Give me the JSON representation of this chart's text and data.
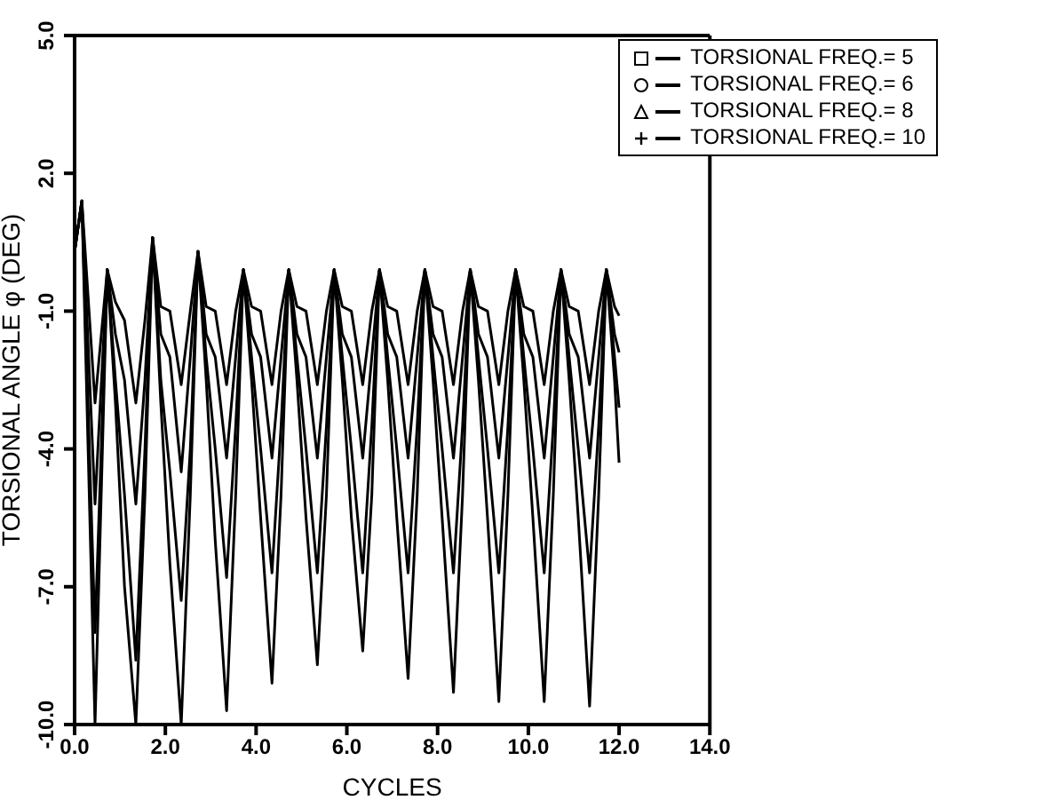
{
  "chart_data": {
    "type": "line",
    "xlabel": "CYCLES",
    "ylabel": "TORSIONAL ANGLE φ (DEG)",
    "x": [
      0,
      0.16,
      0.45,
      0.72,
      0.9,
      1.1,
      1.35,
      1.55,
      1.72,
      1.9,
      2.1,
      2.35,
      2.55,
      2.72,
      2.9,
      3.1,
      3.35,
      3.55,
      3.72,
      3.9,
      4.1,
      4.35,
      4.55,
      4.72,
      4.9,
      5.1,
      5.35,
      5.55,
      5.72,
      5.9,
      6.1,
      6.35,
      6.55,
      6.72,
      6.9,
      7.1,
      7.35,
      7.55,
      7.72,
      7.9,
      8.1,
      8.35,
      8.55,
      8.72,
      8.9,
      9.1,
      9.35,
      9.55,
      9.72,
      9.9,
      10.1,
      10.35,
      10.55,
      10.72,
      10.9,
      11.1,
      11.35,
      11.55,
      11.72,
      11.9,
      12.0
    ],
    "series": [
      {
        "name": "TORSIONAL FREQ.= 5",
        "color": "#000000",
        "values": [
          0.3,
          1.4,
          -10,
          -0.1,
          -3,
          -7,
          -10,
          -5,
          0.6,
          -3,
          -6.5,
          -10,
          -5,
          0.3,
          -2.5,
          -6,
          -9.7,
          -5,
          -0.1,
          -2.5,
          -5.5,
          -9.1,
          -5,
          -0.1,
          -2.5,
          -5.5,
          -8.7,
          -5,
          -0.1,
          -2.5,
          -5.5,
          -8.4,
          -5,
          -0.1,
          -2.5,
          -5.5,
          -9,
          -5,
          -0.1,
          -2.5,
          -5.5,
          -9.3,
          -5,
          -0.1,
          -2.5,
          -5.5,
          -9.5,
          -5,
          -0.1,
          -2.5,
          -5.5,
          -9.5,
          -5,
          -0.1,
          -2.5,
          -5.5,
          -9.6,
          -5,
          -0.1,
          -2.5,
          -4.3
        ]
      },
      {
        "name": "TORSIONAL FREQ.= 6",
        "color": "#000000",
        "values": [
          0.3,
          1.4,
          -8,
          -0.1,
          -2.5,
          -5,
          -8.6,
          -4,
          0.6,
          -2.5,
          -4.5,
          -7.3,
          -4,
          0.3,
          -2,
          -4,
          -6.8,
          -3.5,
          -0.1,
          -2,
          -4,
          -6.7,
          -3.5,
          -0.1,
          -2,
          -4,
          -6.7,
          -3.5,
          -0.1,
          -2,
          -4,
          -6.7,
          -3.5,
          -0.1,
          -2,
          -4,
          -6.7,
          -3.5,
          -0.1,
          -2,
          -4,
          -6.7,
          -3.5,
          -0.1,
          -2,
          -4,
          -6.7,
          -3.5,
          -0.1,
          -2,
          -4,
          -6.7,
          -3.5,
          -0.1,
          -2,
          -4,
          -6.7,
          -3.5,
          -0.1,
          -2,
          -3.1
        ]
      },
      {
        "name": "TORSIONAL FREQ.= 8",
        "color": "#000000",
        "values": [
          0.3,
          1.4,
          -5.2,
          -0.1,
          -1.5,
          -2.5,
          -5.2,
          -2.5,
          0.6,
          -1.5,
          -2,
          -4.5,
          -2,
          0.3,
          -1.5,
          -2,
          -4.2,
          -2,
          -0.1,
          -1.5,
          -2,
          -4.2,
          -2,
          -0.1,
          -1.5,
          -2,
          -4.2,
          -2,
          -0.1,
          -1.5,
          -2,
          -4.2,
          -2,
          -0.1,
          -1.5,
          -2,
          -4.2,
          -2,
          -0.1,
          -1.5,
          -2,
          -4.2,
          -2,
          -0.1,
          -1.5,
          -2,
          -4.2,
          -2,
          -0.1,
          -1.5,
          -2,
          -4.2,
          -2,
          -0.1,
          -1.5,
          -2,
          -4.2,
          -2,
          -0.1,
          -1.5,
          -1.9
        ]
      },
      {
        "name": "TORSIONAL FREQ.= 10",
        "color": "#000000",
        "values": [
          0.3,
          1.4,
          -3,
          -0.1,
          -0.8,
          -1.2,
          -3,
          -1.2,
          0.6,
          -0.9,
          -1,
          -2.6,
          -1,
          0.3,
          -0.9,
          -1,
          -2.6,
          -1,
          -0.1,
          -0.9,
          -1,
          -2.6,
          -1,
          -0.1,
          -0.9,
          -1,
          -2.6,
          -1,
          -0.1,
          -0.9,
          -1,
          -2.6,
          -1,
          -0.1,
          -0.9,
          -1,
          -2.6,
          -1,
          -0.1,
          -0.9,
          -1,
          -2.6,
          -1,
          -0.1,
          -0.9,
          -1,
          -2.6,
          -1,
          -0.1,
          -0.9,
          -1,
          -2.6,
          -1,
          -0.1,
          -0.9,
          -1,
          -2.6,
          -1,
          -0.1,
          -0.9,
          -1.1
        ]
      }
    ],
    "xlim": [
      0,
      14
    ],
    "xticks": [
      {
        "value": 0,
        "label": "0.0"
      },
      {
        "value": 2,
        "label": "2.0"
      },
      {
        "value": 4,
        "label": "4.0"
      },
      {
        "value": 6,
        "label": "6.0"
      },
      {
        "value": 8,
        "label": "8.0"
      },
      {
        "value": 10,
        "label": "10.0"
      },
      {
        "value": 12,
        "label": "12.0"
      },
      {
        "value": 14,
        "label": "14.0"
      }
    ],
    "ylim": [
      -10,
      5
    ],
    "yticks": [
      {
        "value": -10,
        "label": "-10.0"
      },
      {
        "value": -7,
        "label": "-7.0"
      },
      {
        "value": -4,
        "label": "-4.0"
      },
      {
        "value": -1,
        "label": "-1.0"
      },
      {
        "value": 2,
        "label": "2.0"
      },
      {
        "value": 5,
        "label": "5.0"
      }
    ],
    "grid": false,
    "legend": "top right",
    "line_style": "solid"
  }
}
